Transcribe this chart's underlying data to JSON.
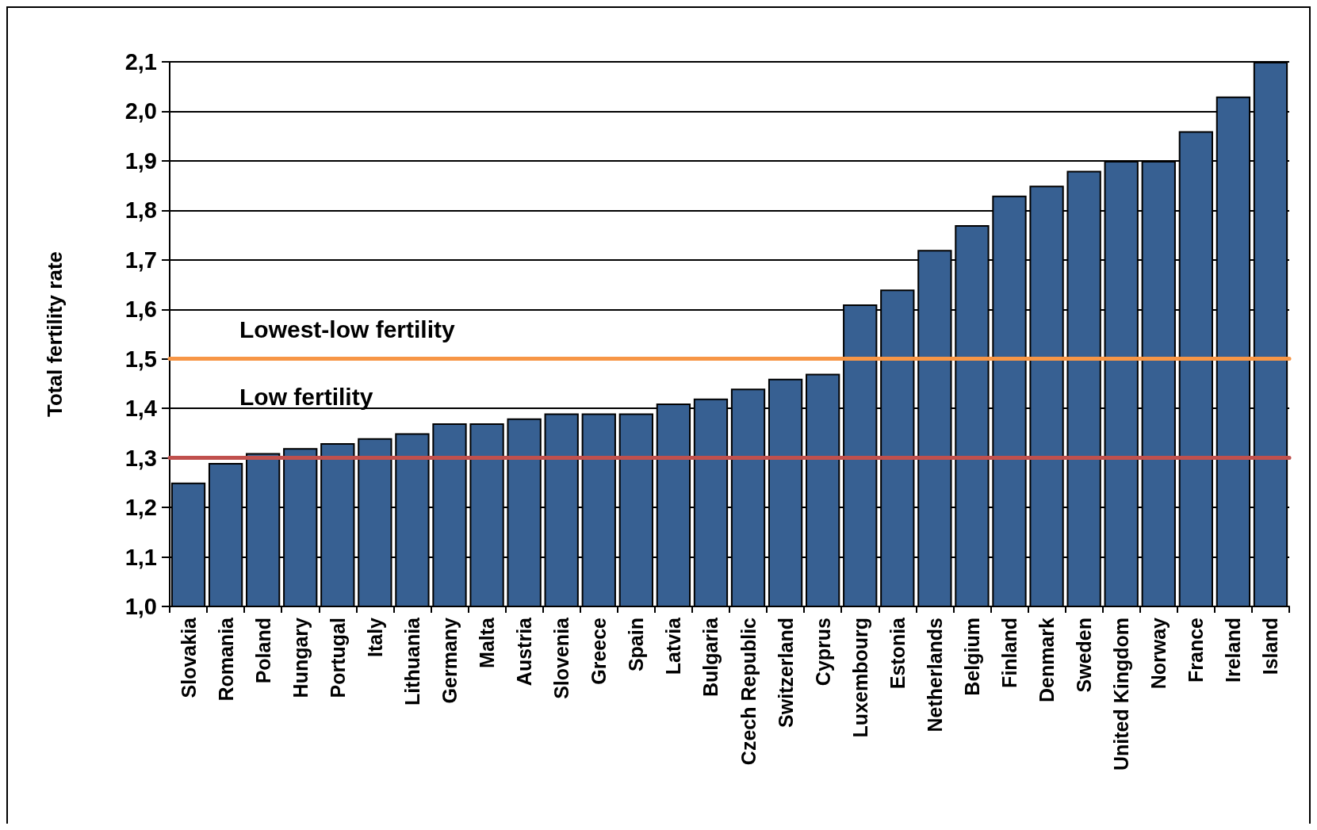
{
  "chart_data": {
    "type": "bar",
    "ylabel": "Total fertility rate",
    "categories": [
      "Slovakia",
      "Romania",
      "Poland",
      "Hungary",
      "Portugal",
      "Italy",
      "Lithuania",
      "Germany",
      "Malta",
      "Austria",
      "Slovenia",
      "Greece",
      "Spain",
      "Latvia",
      "Bulgaria",
      "Czech Republic",
      "Switzerland",
      "Cyprus",
      "Luxembourg",
      "Estonia",
      "Netherlands",
      "Belgium",
      "Finland",
      "Denmark",
      "Sweden",
      "United Kingdom",
      "Norway",
      "France",
      "Ireland",
      "Island"
    ],
    "values": [
      1.25,
      1.29,
      1.31,
      1.32,
      1.33,
      1.34,
      1.35,
      1.37,
      1.37,
      1.38,
      1.39,
      1.39,
      1.39,
      1.41,
      1.42,
      1.44,
      1.46,
      1.47,
      1.61,
      1.64,
      1.72,
      1.77,
      1.83,
      1.85,
      1.88,
      1.9,
      1.9,
      1.96,
      2.03,
      2.1
    ],
    "color": "#376092",
    "ylim": [
      1.0,
      2.1
    ],
    "yticks": [
      {
        "value": 1.0,
        "label": "1,0"
      },
      {
        "value": 1.1,
        "label": "1,1"
      },
      {
        "value": 1.2,
        "label": "1,2"
      },
      {
        "value": 1.3,
        "label": "1,3"
      },
      {
        "value": 1.4,
        "label": "1,4"
      },
      {
        "value": 1.5,
        "label": "1,5"
      },
      {
        "value": 1.6,
        "label": "1,6"
      },
      {
        "value": 1.7,
        "label": "1,7"
      },
      {
        "value": 1.8,
        "label": "1,8"
      },
      {
        "value": 1.9,
        "label": "1,9"
      },
      {
        "value": 2.0,
        "label": "2,0"
      },
      {
        "value": 2.1,
        "label": "2,1"
      }
    ],
    "grid": "y",
    "ref_lines": [
      {
        "axis": "y",
        "value": 1.5,
        "label": "Lowest-low fertility",
        "color": "#f79646"
      },
      {
        "axis": "y",
        "value": 1.3,
        "label": "Low fertility",
        "color": "#c0504d"
      }
    ]
  }
}
